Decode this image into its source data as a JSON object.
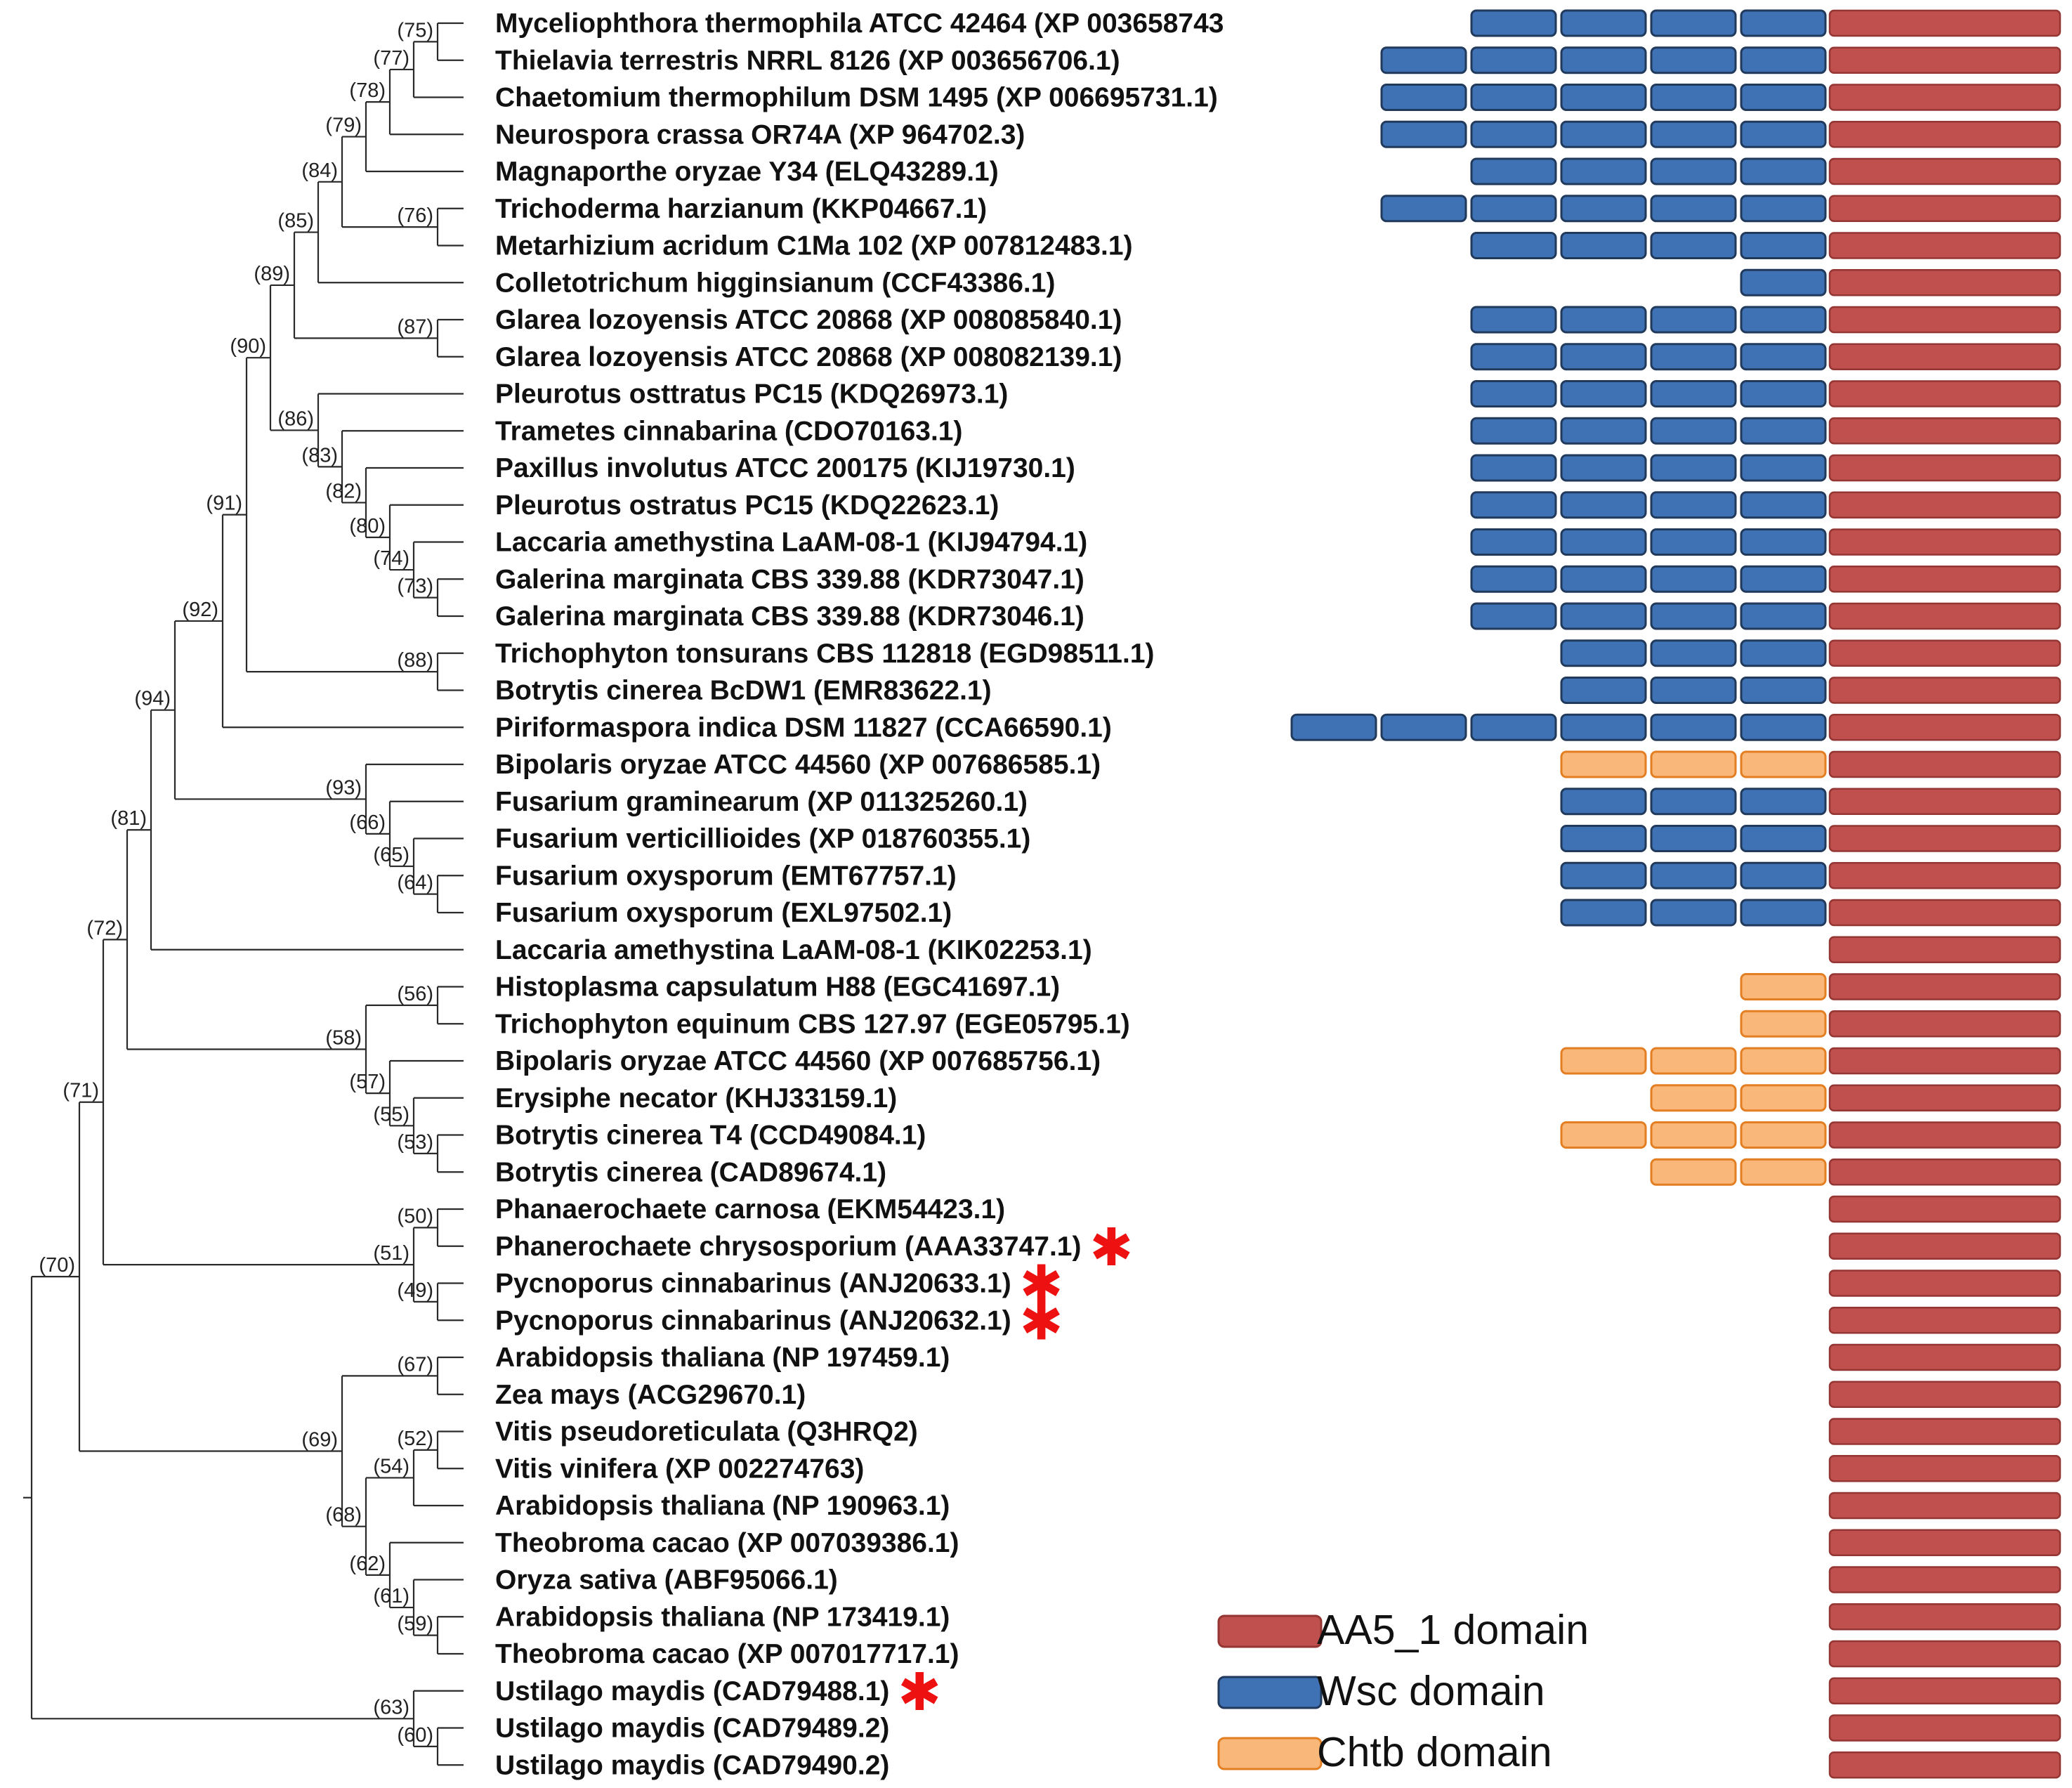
{
  "colors": {
    "AA5_1": "#c0504d",
    "AA5_1_stroke": "#943634",
    "Wsc": "#3f72b4",
    "Wsc_stroke": "#213a5c",
    "Chtb": "#f9b87a",
    "Chtb_stroke": "#e37e22",
    "star": "#ee1111",
    "branch": "#2a2a2a"
  },
  "legend": [
    {
      "key": "AA5_1",
      "label": "AA5_1 domain"
    },
    {
      "key": "Wsc",
      "label": "Wsc domain"
    },
    {
      "key": "Chtb",
      "label": "Chtb domain"
    }
  ],
  "star_symbol": "✱",
  "taxa": [
    {
      "label": "Myceliophthora thermophila ATCC 42464 (XP 003658743",
      "domains": [
        "Wsc",
        "Wsc",
        "Wsc",
        "Wsc"
      ],
      "star": false
    },
    {
      "label": "Thielavia terrestris NRRL 8126 (XP 003656706.1)",
      "domains": [
        "Wsc",
        "Wsc",
        "Wsc",
        "Wsc",
        "Wsc"
      ],
      "star": false
    },
    {
      "label": "Chaetomium thermophilum DSM 1495 (XP 006695731.1)",
      "domains": [
        "Wsc",
        "Wsc",
        "Wsc",
        "Wsc",
        "Wsc"
      ],
      "star": false
    },
    {
      "label": "Neurospora crassa OR74A (XP 964702.3)",
      "domains": [
        "Wsc",
        "Wsc",
        "Wsc",
        "Wsc",
        "Wsc"
      ],
      "star": false
    },
    {
      "label": "Magnaporthe oryzae Y34 (ELQ43289.1)",
      "domains": [
        "Wsc",
        "Wsc",
        "Wsc",
        "Wsc"
      ],
      "star": false
    },
    {
      "label": "Trichoderma harzianum (KKP04667.1)",
      "domains": [
        "Wsc",
        "Wsc",
        "Wsc",
        "Wsc",
        "Wsc"
      ],
      "star": false
    },
    {
      "label": "Metarhizium acridum C1Ma 102 (XP 007812483.1)",
      "domains": [
        "Wsc",
        "Wsc",
        "Wsc",
        "Wsc"
      ],
      "star": false
    },
    {
      "label": "Colletotrichum higginsianum (CCF43386.1)",
      "domains": [
        "Wsc"
      ],
      "star": false
    },
    {
      "label": "Glarea lozoyensis ATCC 20868 (XP 008085840.1)",
      "domains": [
        "Wsc",
        "Wsc",
        "Wsc",
        "Wsc"
      ],
      "star": false
    },
    {
      "label": "Glarea lozoyensis ATCC 20868 (XP 008082139.1)",
      "domains": [
        "Wsc",
        "Wsc",
        "Wsc",
        "Wsc"
      ],
      "star": false
    },
    {
      "label": "Pleurotus osttratus PC15 (KDQ26973.1)",
      "domains": [
        "Wsc",
        "Wsc",
        "Wsc",
        "Wsc"
      ],
      "star": false
    },
    {
      "label": "Trametes cinnabarina (CDO70163.1)",
      "domains": [
        "Wsc",
        "Wsc",
        "Wsc",
        "Wsc"
      ],
      "star": false
    },
    {
      "label": "Paxillus involutus ATCC 200175 (KIJ19730.1)",
      "domains": [
        "Wsc",
        "Wsc",
        "Wsc",
        "Wsc"
      ],
      "star": false
    },
    {
      "label": "Pleurotus ostratus PC15 (KDQ22623.1)",
      "domains": [
        "Wsc",
        "Wsc",
        "Wsc",
        "Wsc"
      ],
      "star": false
    },
    {
      "label": "Laccaria amethystina LaAM-08-1 (KIJ94794.1)",
      "domains": [
        "Wsc",
        "Wsc",
        "Wsc",
        "Wsc"
      ],
      "star": false
    },
    {
      "label": "Galerina marginata CBS 339.88 (KDR73047.1)",
      "domains": [
        "Wsc",
        "Wsc",
        "Wsc",
        "Wsc"
      ],
      "star": false
    },
    {
      "label": "Galerina marginata CBS 339.88 (KDR73046.1)",
      "domains": [
        "Wsc",
        "Wsc",
        "Wsc",
        "Wsc"
      ],
      "star": false
    },
    {
      "label": "Trichophyton tonsurans CBS 112818 (EGD98511.1)",
      "domains": [
        "Wsc",
        "Wsc",
        "Wsc"
      ],
      "star": false
    },
    {
      "label": "Botrytis cinerea BcDW1 (EMR83622.1)",
      "domains": [
        "Wsc",
        "Wsc",
        "Wsc"
      ],
      "star": false
    },
    {
      "label": "Piriformaspora indica DSM 11827 (CCA66590.1)",
      "domains": [
        "Wsc",
        "Wsc",
        "Wsc",
        "Wsc",
        "Wsc",
        "Wsc"
      ],
      "star": false
    },
    {
      "label": "Bipolaris oryzae ATCC 44560 (XP 007686585.1)",
      "domains": [
        "Chtb",
        "Chtb",
        "Chtb"
      ],
      "star": false
    },
    {
      "label": "Fusarium graminearum (XP 011325260.1)",
      "domains": [
        "Wsc",
        "Wsc",
        "Wsc"
      ],
      "star": false
    },
    {
      "label": "Fusarium verticillioides (XP 018760355.1)",
      "domains": [
        "Wsc",
        "Wsc",
        "Wsc"
      ],
      "star": false
    },
    {
      "label": "Fusarium oxysporum (EMT67757.1)",
      "domains": [
        "Wsc",
        "Wsc",
        "Wsc"
      ],
      "star": false
    },
    {
      "label": "Fusarium oxysporum (EXL97502.1)",
      "domains": [
        "Wsc",
        "Wsc",
        "Wsc"
      ],
      "star": false
    },
    {
      "label": "Laccaria amethystina LaAM-08-1 (KIK02253.1)",
      "domains": [],
      "star": false
    },
    {
      "label": "Histoplasma capsulatum H88 (EGC41697.1)",
      "domains": [
        "Chtb"
      ],
      "star": false
    },
    {
      "label": "Trichophyton equinum CBS 127.97 (EGE05795.1)",
      "domains": [
        "Chtb"
      ],
      "star": false
    },
    {
      "label": "Bipolaris oryzae ATCC 44560 (XP 007685756.1)",
      "domains": [
        "Chtb",
        "Chtb",
        "Chtb"
      ],
      "star": false
    },
    {
      "label": "Erysiphe necator (KHJ33159.1)",
      "domains": [
        "Chtb",
        "Chtb"
      ],
      "star": false
    },
    {
      "label": "Botrytis cinerea T4 (CCD49084.1)",
      "domains": [
        "Chtb",
        "Chtb",
        "Chtb"
      ],
      "star": false
    },
    {
      "label": "Botrytis cinerea (CAD89674.1)",
      "domains": [
        "Chtb",
        "Chtb"
      ],
      "star": false
    },
    {
      "label": "Phanaerochaete carnosa (EKM54423.1)",
      "domains": [],
      "star": false
    },
    {
      "label": "Phanerochaete chrysosporium (AAA33747.1)",
      "domains": [],
      "star": true
    },
    {
      "label": "Pycnoporus cinnabarinus (ANJ20633.1)",
      "domains": [],
      "star": true
    },
    {
      "label": "Pycnoporus cinnabarinus (ANJ20632.1)",
      "domains": [],
      "star": true
    },
    {
      "label": "Arabidopsis thaliana (NP 197459.1)",
      "domains": [],
      "star": false
    },
    {
      "label": "Zea mays (ACG29670.1)",
      "domains": [],
      "star": false
    },
    {
      "label": "Vitis pseudoreticulata (Q3HRQ2)",
      "domains": [],
      "star": false
    },
    {
      "label": "Vitis vinifera (XP 002274763)",
      "domains": [],
      "star": false
    },
    {
      "label": "Arabidopsis thaliana (NP 190963.1)",
      "domains": [],
      "star": false
    },
    {
      "label": "Theobroma cacao (XP 007039386.1)",
      "domains": [],
      "star": false
    },
    {
      "label": "Oryza sativa (ABF95066.1)",
      "domains": [],
      "star": false
    },
    {
      "label": "Arabidopsis thaliana (NP 173419.1)",
      "domains": [],
      "star": false
    },
    {
      "label": "Theobroma cacao (XP 007017717.1)",
      "domains": [],
      "star": false
    },
    {
      "label": "Ustilago maydis (CAD79488.1)",
      "domains": [],
      "star": true
    },
    {
      "label": "Ustilago maydis (CAD79489.2)",
      "domains": [],
      "star": false
    },
    {
      "label": "Ustilago maydis (CAD79490.2)",
      "domains": [],
      "star": false
    }
  ],
  "tree": {
    "nodes": [
      {
        "id": "n75",
        "boot": "(75)",
        "depth": 17,
        "children": [
          0,
          1
        ]
      },
      {
        "id": "n77",
        "boot": "(77)",
        "depth": 16,
        "children": [
          "n75",
          2
        ]
      },
      {
        "id": "n78",
        "boot": "(78)",
        "depth": 15,
        "children": [
          "n77",
          3
        ]
      },
      {
        "id": "n79",
        "boot": "(79)",
        "depth": 14,
        "children": [
          "n78",
          4
        ]
      },
      {
        "id": "n76",
        "boot": "(76)",
        "depth": 17,
        "children": [
          5,
          6
        ]
      },
      {
        "id": "n84",
        "boot": "(84)",
        "depth": 13,
        "children": [
          "n79",
          "n76"
        ]
      },
      {
        "id": "n85",
        "boot": "(85)",
        "depth": 12,
        "children": [
          "n84",
          7
        ]
      },
      {
        "id": "n87",
        "boot": "(87)",
        "depth": 17,
        "children": [
          8,
          9
        ]
      },
      {
        "id": "n89",
        "boot": "(89)",
        "depth": 11,
        "children": [
          "n85",
          "n87"
        ]
      },
      {
        "id": "n73",
        "boot": "(73)",
        "depth": 17,
        "children": [
          15,
          16
        ]
      },
      {
        "id": "n74",
        "boot": "(74)",
        "depth": 16,
        "children": [
          14,
          "n73"
        ]
      },
      {
        "id": "n80",
        "boot": "(80)",
        "depth": 15,
        "children": [
          13,
          "n74"
        ]
      },
      {
        "id": "n82",
        "boot": "(82)",
        "depth": 14,
        "children": [
          12,
          "n80"
        ]
      },
      {
        "id": "n83",
        "boot": "(83)",
        "depth": 13,
        "children": [
          11,
          "n82"
        ]
      },
      {
        "id": "n86",
        "boot": "(86)",
        "depth": 12,
        "children": [
          10,
          "n83"
        ]
      },
      {
        "id": "n90",
        "boot": "(90)",
        "depth": 10,
        "children": [
          "n89",
          "n86"
        ]
      },
      {
        "id": "n88",
        "boot": "(88)",
        "depth": 17,
        "children": [
          17,
          18
        ]
      },
      {
        "id": "n91",
        "boot": "(91)",
        "depth": 9,
        "children": [
          "n90",
          "n88"
        ]
      },
      {
        "id": "n92",
        "boot": "(92)",
        "depth": 8,
        "children": [
          "n91",
          19
        ]
      },
      {
        "id": "n64",
        "boot": "(64)",
        "depth": 17,
        "children": [
          23,
          24
        ]
      },
      {
        "id": "n65",
        "boot": "(65)",
        "depth": 16,
        "children": [
          22,
          "n64"
        ]
      },
      {
        "id": "n66",
        "boot": "(66)",
        "depth": 15,
        "children": [
          21,
          "n65"
        ]
      },
      {
        "id": "n93",
        "boot": "(93)",
        "depth": 14,
        "children": [
          20,
          "n66"
        ]
      },
      {
        "id": "n94",
        "boot": "(94)",
        "depth": 6,
        "children": [
          "n92",
          "n93"
        ]
      },
      {
        "id": "n81",
        "boot": "(81)",
        "depth": 5,
        "children": [
          "n94",
          25
        ]
      },
      {
        "id": "n56",
        "boot": "(56)",
        "depth": 17,
        "children": [
          26,
          27
        ]
      },
      {
        "id": "n53",
        "boot": "(53)",
        "depth": 17,
        "children": [
          30,
          31
        ]
      },
      {
        "id": "n55",
        "boot": "(55)",
        "depth": 16,
        "children": [
          29,
          "n53"
        ]
      },
      {
        "id": "n57",
        "boot": "(57)",
        "depth": 15,
        "children": [
          28,
          "n55"
        ]
      },
      {
        "id": "n58",
        "boot": "(58)",
        "depth": 14,
        "children": [
          "n56",
          "n57"
        ]
      },
      {
        "id": "n72",
        "boot": "(72)",
        "depth": 4,
        "children": [
          "n81",
          "n58"
        ]
      },
      {
        "id": "n50",
        "boot": "(50)",
        "depth": 17,
        "children": [
          32,
          33
        ]
      },
      {
        "id": "n49",
        "boot": "(49)",
        "depth": 17,
        "children": [
          34,
          35
        ]
      },
      {
        "id": "n51",
        "boot": "(51)",
        "depth": 16,
        "children": [
          "n50",
          "n49"
        ]
      },
      {
        "id": "n71",
        "boot": "(71)",
        "depth": 3,
        "children": [
          "n72",
          "n51"
        ]
      },
      {
        "id": "n67",
        "boot": "(67)",
        "depth": 17,
        "children": [
          36,
          37
        ]
      },
      {
        "id": "n52",
        "boot": "(52)",
        "depth": 17,
        "children": [
          38,
          39
        ]
      },
      {
        "id": "n54",
        "boot": "(54)",
        "depth": 16,
        "children": [
          "n52",
          40
        ]
      },
      {
        "id": "n59",
        "boot": "(59)",
        "depth": 17,
        "children": [
          43,
          44
        ]
      },
      {
        "id": "n61",
        "boot": "(61)",
        "depth": 16,
        "children": [
          42,
          "n59"
        ]
      },
      {
        "id": "n62",
        "boot": "(62)",
        "depth": 15,
        "children": [
          41,
          "n61"
        ]
      },
      {
        "id": "n68",
        "boot": "(68)",
        "depth": 14,
        "children": [
          "n54",
          "n62"
        ]
      },
      {
        "id": "n69",
        "boot": "(69)",
        "depth": 13,
        "children": [
          "n67",
          "n68"
        ]
      },
      {
        "id": "n70",
        "boot": "(70)",
        "depth": 2,
        "children": [
          "n71",
          "n69"
        ]
      },
      {
        "id": "n60",
        "boot": "(60)",
        "depth": 17,
        "children": [
          46,
          47
        ]
      },
      {
        "id": "n63",
        "boot": "(63)",
        "depth": 16,
        "children": [
          45,
          "n60"
        ]
      },
      {
        "id": "root",
        "boot": "",
        "depth": 0,
        "children": [
          "n70",
          "n63"
        ]
      }
    ]
  }
}
